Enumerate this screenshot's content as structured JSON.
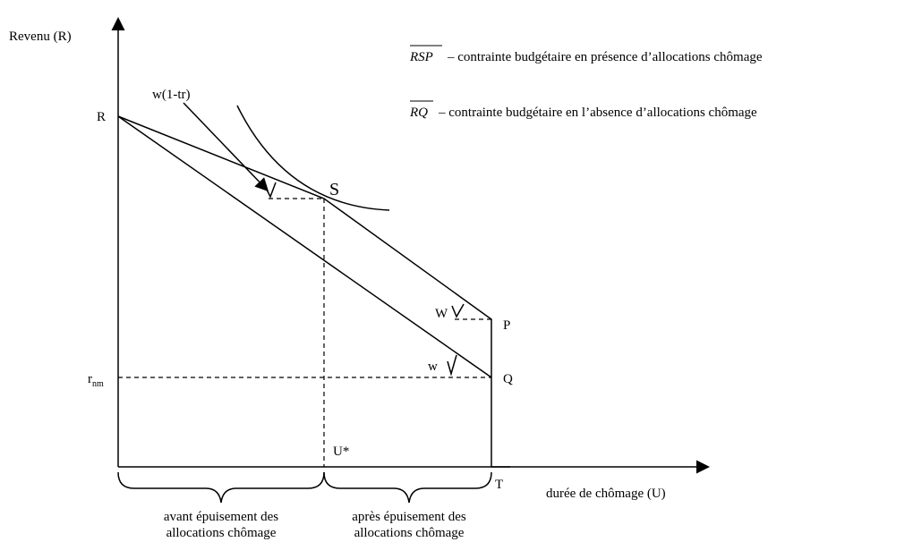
{
  "axes": {
    "y_label": "Revenu (R)",
    "x_label": "durée de chômage (U)"
  },
  "points": {
    "R": "R",
    "S": "S",
    "P": "P",
    "Q": "Q",
    "T": "T",
    "U_star": "U*",
    "r_nm": "r",
    "r_nm_sub": "nm"
  },
  "slopes": {
    "w_1_tr": "w(1-tr)",
    "W_upper": "W",
    "w_lower": "w"
  },
  "legend": [
    {
      "symbol": "RSP",
      "text": "– contrainte budgétaire en présence d’allocations chômage"
    },
    {
      "symbol": "RQ",
      "text": "– contrainte budgétaire en l’absence d’allocations chômage"
    }
  ],
  "periods": [
    {
      "line1": "avant épuisement des",
      "line2": "allocations chômage"
    },
    {
      "line1": "après épuisement des",
      "line2": "allocations chômage"
    }
  ]
}
